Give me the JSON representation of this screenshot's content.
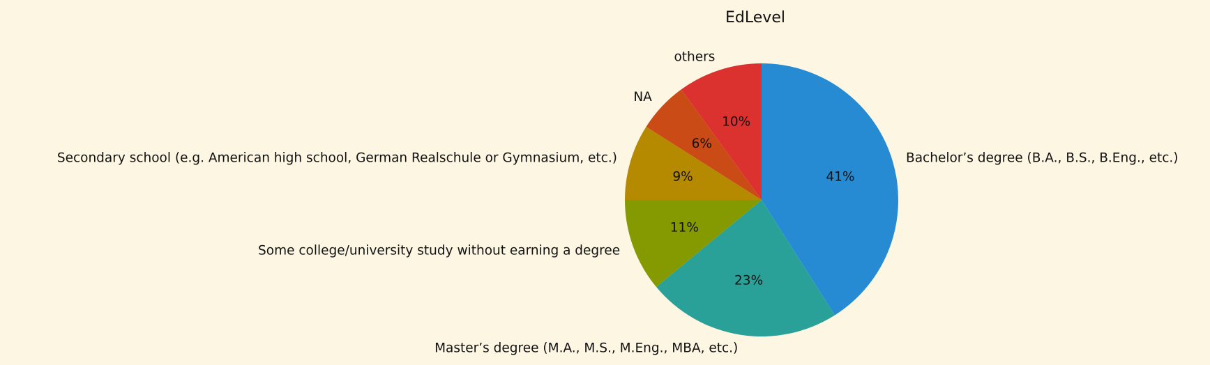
{
  "chart_data": {
    "type": "pie",
    "title": "EdLevel",
    "start_angle_deg": 90,
    "direction": "clockwise",
    "labels": [
      "Bachelor’s degree (B.A., B.S., B.Eng., etc.)",
      "Master’s degree (M.A., M.S., M.Eng., MBA, etc.)",
      "Some college/university study without earning a degree",
      "Secondary school (e.g. American high school, German Realschule or Gymnasium, etc.)",
      "NA",
      "others"
    ],
    "values": [
      41,
      23,
      11,
      9,
      6,
      10
    ],
    "percent_labels": [
      "41%",
      "23%",
      "11%",
      "9%",
      "6%",
      "10%"
    ],
    "colors": [
      "#268bd2",
      "#2aa198",
      "#859900",
      "#b58900",
      "#cb4b16",
      "#dc322f"
    ]
  }
}
